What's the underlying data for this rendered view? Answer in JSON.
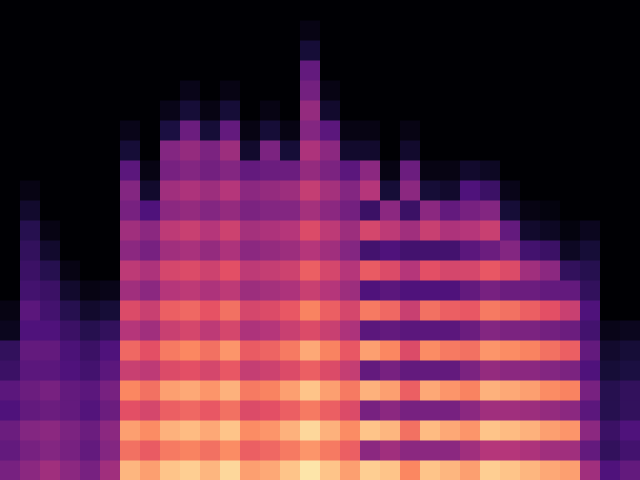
{
  "chart_data": {
    "type": "heatmap",
    "tick_labels": false,
    "xlim": [
      0,
      32
    ],
    "ylim": [
      0,
      24
    ],
    "zlim": [
      0,
      100
    ],
    "cells": [
      [
        35,
        30,
        32,
        25,
        28,
        20,
        18,
        5,
        3,
        0,
        0,
        0,
        0,
        0,
        0,
        0,
        0,
        0,
        0,
        0,
        0,
        0,
        0,
        0
      ],
      [
        40,
        35,
        38,
        30,
        32,
        28,
        30,
        25,
        28,
        22,
        20,
        18,
        15,
        8,
        3,
        0,
        0,
        0,
        0,
        0,
        0,
        0,
        0,
        0
      ],
      [
        45,
        38,
        40,
        32,
        35,
        28,
        30,
        25,
        22,
        20,
        15,
        8,
        3,
        0,
        0,
        0,
        0,
        0,
        0,
        0,
        0,
        0,
        0,
        0
      ],
      [
        40,
        35,
        36,
        30,
        30,
        25,
        24,
        20,
        15,
        8,
        3,
        0,
        0,
        0,
        0,
        0,
        0,
        0,
        0,
        0,
        0,
        0,
        0,
        0
      ],
      [
        35,
        30,
        32,
        26,
        28,
        22,
        20,
        15,
        8,
        3,
        0,
        0,
        0,
        0,
        0,
        0,
        0,
        0,
        0,
        0,
        0,
        0,
        0,
        0
      ],
      [
        45,
        38,
        40,
        32,
        35,
        28,
        25,
        18,
        10,
        4,
        0,
        0,
        0,
        0,
        0,
        0,
        0,
        0,
        0,
        0,
        0,
        0,
        0,
        0
      ],
      [
        85,
        70,
        80,
        62,
        75,
        55,
        68,
        50,
        60,
        45,
        52,
        40,
        45,
        35,
        38,
        28,
        10,
        4,
        0,
        0,
        0,
        0,
        0,
        0
      ],
      [
        80,
        65,
        76,
        58,
        70,
        52,
        62,
        45,
        55,
        40,
        48,
        35,
        40,
        25,
        8,
        3,
        0,
        0,
        0,
        0,
        0,
        0,
        0,
        0
      ],
      [
        88,
        72,
        84,
        66,
        80,
        60,
        72,
        55,
        66,
        50,
        58,
        45,
        52,
        40,
        45,
        35,
        38,
        12,
        4,
        0,
        0,
        0,
        0,
        0
      ],
      [
        90,
        74,
        86,
        68,
        82,
        62,
        75,
        58,
        68,
        52,
        60,
        47,
        55,
        42,
        48,
        38,
        42,
        32,
        10,
        4,
        0,
        0,
        0,
        0
      ],
      [
        85,
        70,
        82,
        64,
        78,
        58,
        70,
        52,
        63,
        48,
        56,
        42,
        50,
        38,
        44,
        34,
        36,
        10,
        3,
        0,
        0,
        0,
        0,
        0
      ],
      [
        92,
        76,
        88,
        70,
        84,
        64,
        78,
        58,
        70,
        52,
        62,
        48,
        56,
        42,
        50,
        38,
        44,
        30,
        10,
        3,
        0,
        0,
        0,
        0
      ],
      [
        80,
        66,
        76,
        60,
        72,
        54,
        65,
        48,
        58,
        44,
        52,
        40,
        46,
        36,
        40,
        30,
        8,
        3,
        0,
        0,
        0,
        0,
        0,
        0
      ],
      [
        82,
        68,
        78,
        62,
        74,
        56,
        67,
        50,
        60,
        46,
        54,
        42,
        48,
        38,
        42,
        32,
        36,
        10,
        3,
        0,
        0,
        0,
        0,
        0
      ],
      [
        88,
        72,
        84,
        66,
        80,
        60,
        72,
        55,
        64,
        48,
        56,
        44,
        50,
        38,
        44,
        32,
        10,
        3,
        0,
        0,
        0,
        0,
        0,
        0
      ],
      [
        95,
        78,
        92,
        72,
        88,
        66,
        82,
        60,
        74,
        55,
        66,
        50,
        60,
        46,
        54,
        42,
        48,
        38,
        42,
        34,
        30,
        10,
        3,
        0
      ],
      [
        88,
        72,
        84,
        66,
        80,
        60,
        74,
        55,
        66,
        50,
        58,
        45,
        52,
        40,
        46,
        36,
        40,
        28,
        8,
        3,
        0,
        0,
        0,
        0
      ],
      [
        80,
        66,
        76,
        60,
        72,
        54,
        64,
        48,
        58,
        44,
        50,
        38,
        44,
        34,
        38,
        28,
        8,
        3,
        0,
        0,
        0,
        0,
        0,
        0
      ],
      [
        90,
        40,
        88,
        35,
        84,
        30,
        80,
        28,
        72,
        25,
        65,
        22,
        58,
        20,
        50,
        40,
        8,
        3,
        0,
        0,
        0,
        0,
        0,
        0
      ],
      [
        88,
        45,
        85,
        40,
        80,
        35,
        75,
        30,
        68,
        28,
        60,
        25,
        52,
        40,
        10,
        3,
        0,
        0,
        0,
        0,
        0,
        0,
        0,
        0
      ],
      [
        75,
        40,
        70,
        35,
        66,
        30,
        60,
        28,
        55,
        25,
        50,
        22,
        45,
        20,
        40,
        32,
        8,
        3,
        0,
        0,
        0,
        0,
        0,
        0
      ],
      [
        88,
        40,
        86,
        35,
        82,
        30,
        76,
        28,
        70,
        25,
        62,
        22,
        55,
        40,
        10,
        3,
        0,
        0,
        0,
        0,
        0,
        0,
        0,
        0
      ],
      [
        85,
        40,
        82,
        35,
        78,
        30,
        72,
        28,
        66,
        25,
        58,
        22,
        48,
        30,
        8,
        3,
        0,
        0,
        0,
        0,
        0,
        0,
        0,
        0
      ],
      [
        80,
        45,
        78,
        40,
        74,
        36,
        70,
        32,
        64,
        30,
        58,
        28,
        50,
        35,
        25,
        8,
        0,
        0,
        0,
        0,
        0,
        0,
        0,
        0
      ],
      [
        90,
        50,
        88,
        45,
        84,
        42,
        78,
        38,
        72,
        35,
        64,
        32,
        55,
        38,
        20,
        6,
        0,
        0,
        0,
        0,
        0,
        0,
        0,
        0
      ],
      [
        88,
        50,
        86,
        45,
        82,
        40,
        76,
        36,
        70,
        32,
        60,
        38,
        30,
        10,
        4,
        0,
        0,
        0,
        0,
        0,
        0,
        0,
        0,
        0
      ],
      [
        85,
        48,
        84,
        44,
        80,
        40,
        74,
        36,
        66,
        32,
        45,
        22,
        8,
        3,
        0,
        0,
        0,
        0,
        0,
        0,
        0,
        0,
        0,
        0
      ],
      [
        82,
        45,
        80,
        42,
        76,
        38,
        70,
        34,
        62,
        30,
        40,
        20,
        6,
        2,
        0,
        0,
        0,
        0,
        0,
        0,
        0,
        0,
        0,
        0
      ],
      [
        80,
        45,
        78,
        40,
        74,
        36,
        66,
        32,
        55,
        30,
        18,
        6,
        2,
        0,
        0,
        0,
        0,
        0,
        0,
        0,
        0,
        0,
        0,
        0
      ],
      [
        45,
        30,
        40,
        28,
        35,
        25,
        30,
        22,
        25,
        18,
        15,
        10,
        5,
        0,
        0,
        0,
        0,
        0,
        0,
        0,
        0,
        0,
        0,
        0
      ],
      [
        25,
        18,
        20,
        15,
        15,
        10,
        8,
        4,
        0,
        0,
        0,
        0,
        0,
        0,
        0,
        0,
        0,
        0,
        0,
        0,
        0,
        0,
        0,
        0
      ],
      [
        30,
        22,
        25,
        18,
        18,
        12,
        10,
        5,
        0,
        0,
        0,
        0,
        0,
        0,
        0,
        0,
        0,
        0,
        0,
        0,
        0,
        0,
        0,
        0
      ]
    ]
  }
}
